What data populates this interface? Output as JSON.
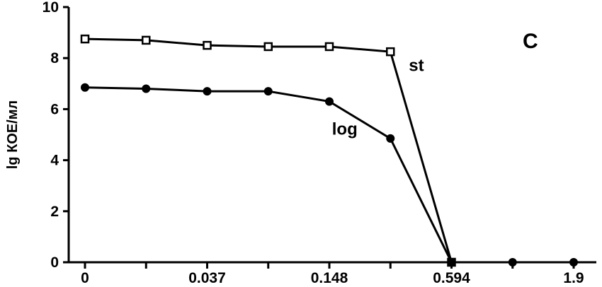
{
  "chart_data": {
    "type": "line",
    "panel_label": "C",
    "ylabel": "lg КОЕ/мл",
    "xlabel": "",
    "ylim": [
      0,
      10
    ],
    "yticks": [
      "0",
      "2",
      "4",
      "6",
      "8",
      "10"
    ],
    "x_positions": [
      0,
      1,
      2,
      3,
      4,
      5,
      6,
      7,
      8
    ],
    "xtick_labels": [
      {
        "pos": 0,
        "label": "0"
      },
      {
        "pos": 2,
        "label": "0.037"
      },
      {
        "pos": 4,
        "label": "0.148"
      },
      {
        "pos": 6,
        "label": "0.594"
      },
      {
        "pos": 8,
        "label": "1.9"
      }
    ],
    "series": [
      {
        "name": "st",
        "marker": "open-square",
        "color": "#000000",
        "x": [
          0,
          1,
          2,
          3,
          4,
          5,
          6
        ],
        "values": [
          8.75,
          8.7,
          8.5,
          8.45,
          8.45,
          8.25,
          0
        ]
      },
      {
        "name": "log",
        "marker": "filled-circle",
        "color": "#000000",
        "x": [
          0,
          1,
          2,
          3,
          4,
          5,
          6,
          7,
          8
        ],
        "values": [
          6.85,
          6.8,
          6.7,
          6.7,
          6.3,
          4.85,
          0,
          0,
          0
        ]
      }
    ],
    "annotations": [
      {
        "text": "st",
        "series": "st"
      },
      {
        "text": "log",
        "series": "log"
      }
    ],
    "grid": false,
    "legend": "none"
  }
}
